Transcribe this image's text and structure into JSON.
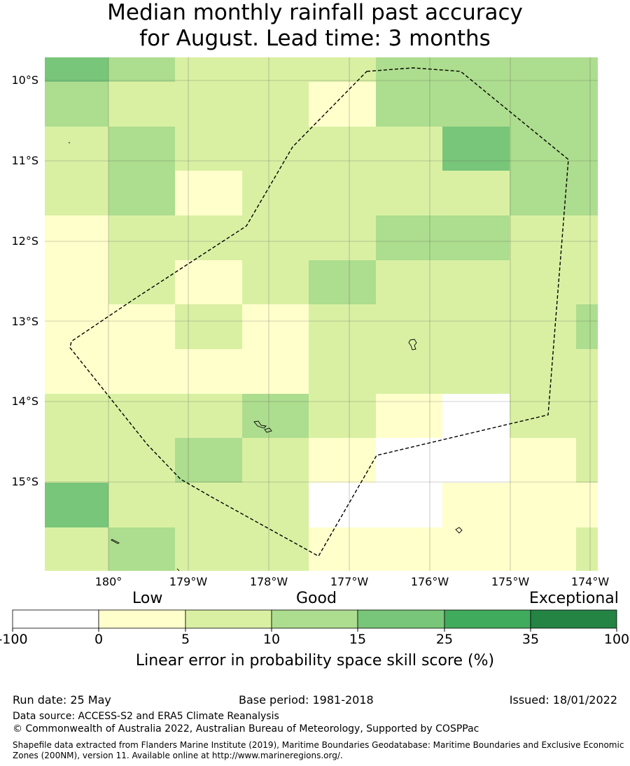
{
  "title": {
    "line1": "Median monthly rainfall past accuracy",
    "line2": "for August. Lead time: 3 months"
  },
  "map": {
    "lat_labels": [
      "10°S",
      "11°S",
      "12°S",
      "13°S",
      "14°S",
      "15°S"
    ],
    "lon_labels": [
      "180°",
      "179°W",
      "178°W",
      "177°W",
      "176°W",
      "175°W",
      "174°W"
    ],
    "skill_bins_per_row_north_to_south": [
      [
        4,
        3,
        2,
        2,
        2,
        3,
        3,
        3,
        3
      ],
      [
        3,
        2,
        2,
        2,
        1,
        3,
        3,
        3,
        3
      ],
      [
        2,
        3,
        2,
        2,
        2,
        2,
        4,
        3,
        3
      ],
      [
        2,
        3,
        1,
        2,
        2,
        2,
        2,
        3,
        3
      ],
      [
        1,
        2,
        2,
        2,
        2,
        3,
        3,
        2,
        2
      ],
      [
        1,
        2,
        1,
        2,
        3,
        2,
        2,
        2,
        2
      ],
      [
        1,
        1,
        2,
        1,
        2,
        2,
        2,
        2,
        3
      ],
      [
        1,
        1,
        1,
        1,
        2,
        2,
        2,
        2,
        2
      ],
      [
        2,
        2,
        2,
        3,
        2,
        1,
        0,
        2,
        2
      ],
      [
        2,
        2,
        3,
        2,
        1,
        0,
        0,
        1,
        2
      ],
      [
        4,
        2,
        2,
        2,
        0,
        0,
        1,
        1,
        1
      ],
      [
        2,
        3,
        2,
        2,
        1,
        1,
        1,
        1,
        2
      ]
    ]
  },
  "colorbar": {
    "category_labels": [
      "Low",
      "Good",
      "Exceptional"
    ],
    "tick_labels": [
      "-100",
      "0",
      "5",
      "10",
      "15",
      "25",
      "35",
      "100"
    ],
    "colors": [
      "#ffffff",
      "#ffffcc",
      "#d9f0a3",
      "#addd8e",
      "#78c679",
      "#41ab5d",
      "#238443"
    ],
    "title": "Linear error in probability space skill score (%)"
  },
  "footer": {
    "run_date": "Run date: 25 May",
    "base_period": "Base period: 1981-2018",
    "issued": "Issued: 18/01/2022",
    "data_source": "Data source: ACCESS-S2 and ERA5 Climate Reanalysis",
    "copyright": "© Commonwealth of Australia 2022, Australian Bureau of Meteorology, Supported by COSPPac",
    "shapefile_note": "Shapefile data extracted from Flanders Marine Institute (2019), Maritime Boundaries Geodatabase: Maritime Boundaries and Exclusive Economic Zones (200NM), version 11. Available online at http://www.marineregions.org/."
  }
}
